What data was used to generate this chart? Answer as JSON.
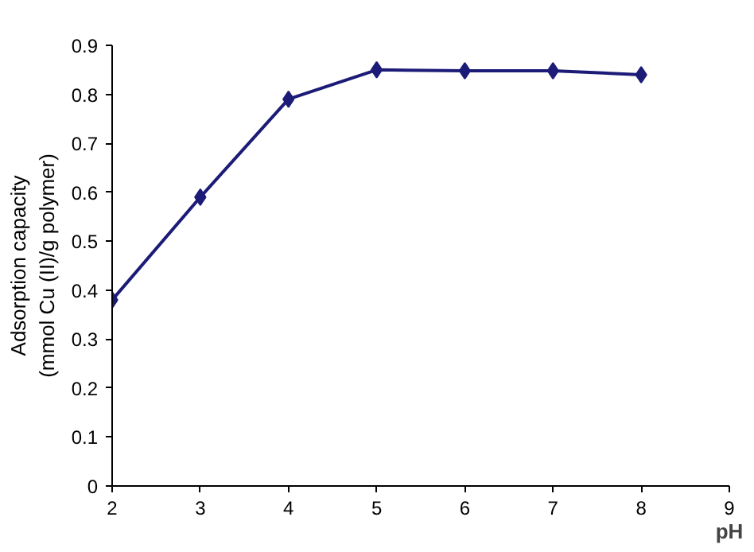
{
  "chart_data": {
    "type": "line",
    "xlabel": "pH",
    "ylabel": "Adsorption capacity\n(mmol Cu (II)/g polymer)",
    "x": [
      2,
      3,
      4,
      5,
      6,
      7,
      8
    ],
    "series": [
      {
        "color": "#1c1c78",
        "values": [
          0.38,
          0.59,
          0.79,
          0.85,
          0.848,
          0.848,
          0.84
        ]
      }
    ],
    "xlim": [
      2,
      9
    ],
    "xticks": [
      2,
      3,
      4,
      5,
      6,
      7,
      8,
      9
    ],
    "ylim": [
      0,
      0.9
    ],
    "yticks": [
      0,
      0.1,
      0.2,
      0.3,
      0.4,
      0.5,
      0.6,
      0.7,
      0.8,
      0.9
    ],
    "grid": false,
    "marker": "diamond",
    "line_style": "solid"
  }
}
